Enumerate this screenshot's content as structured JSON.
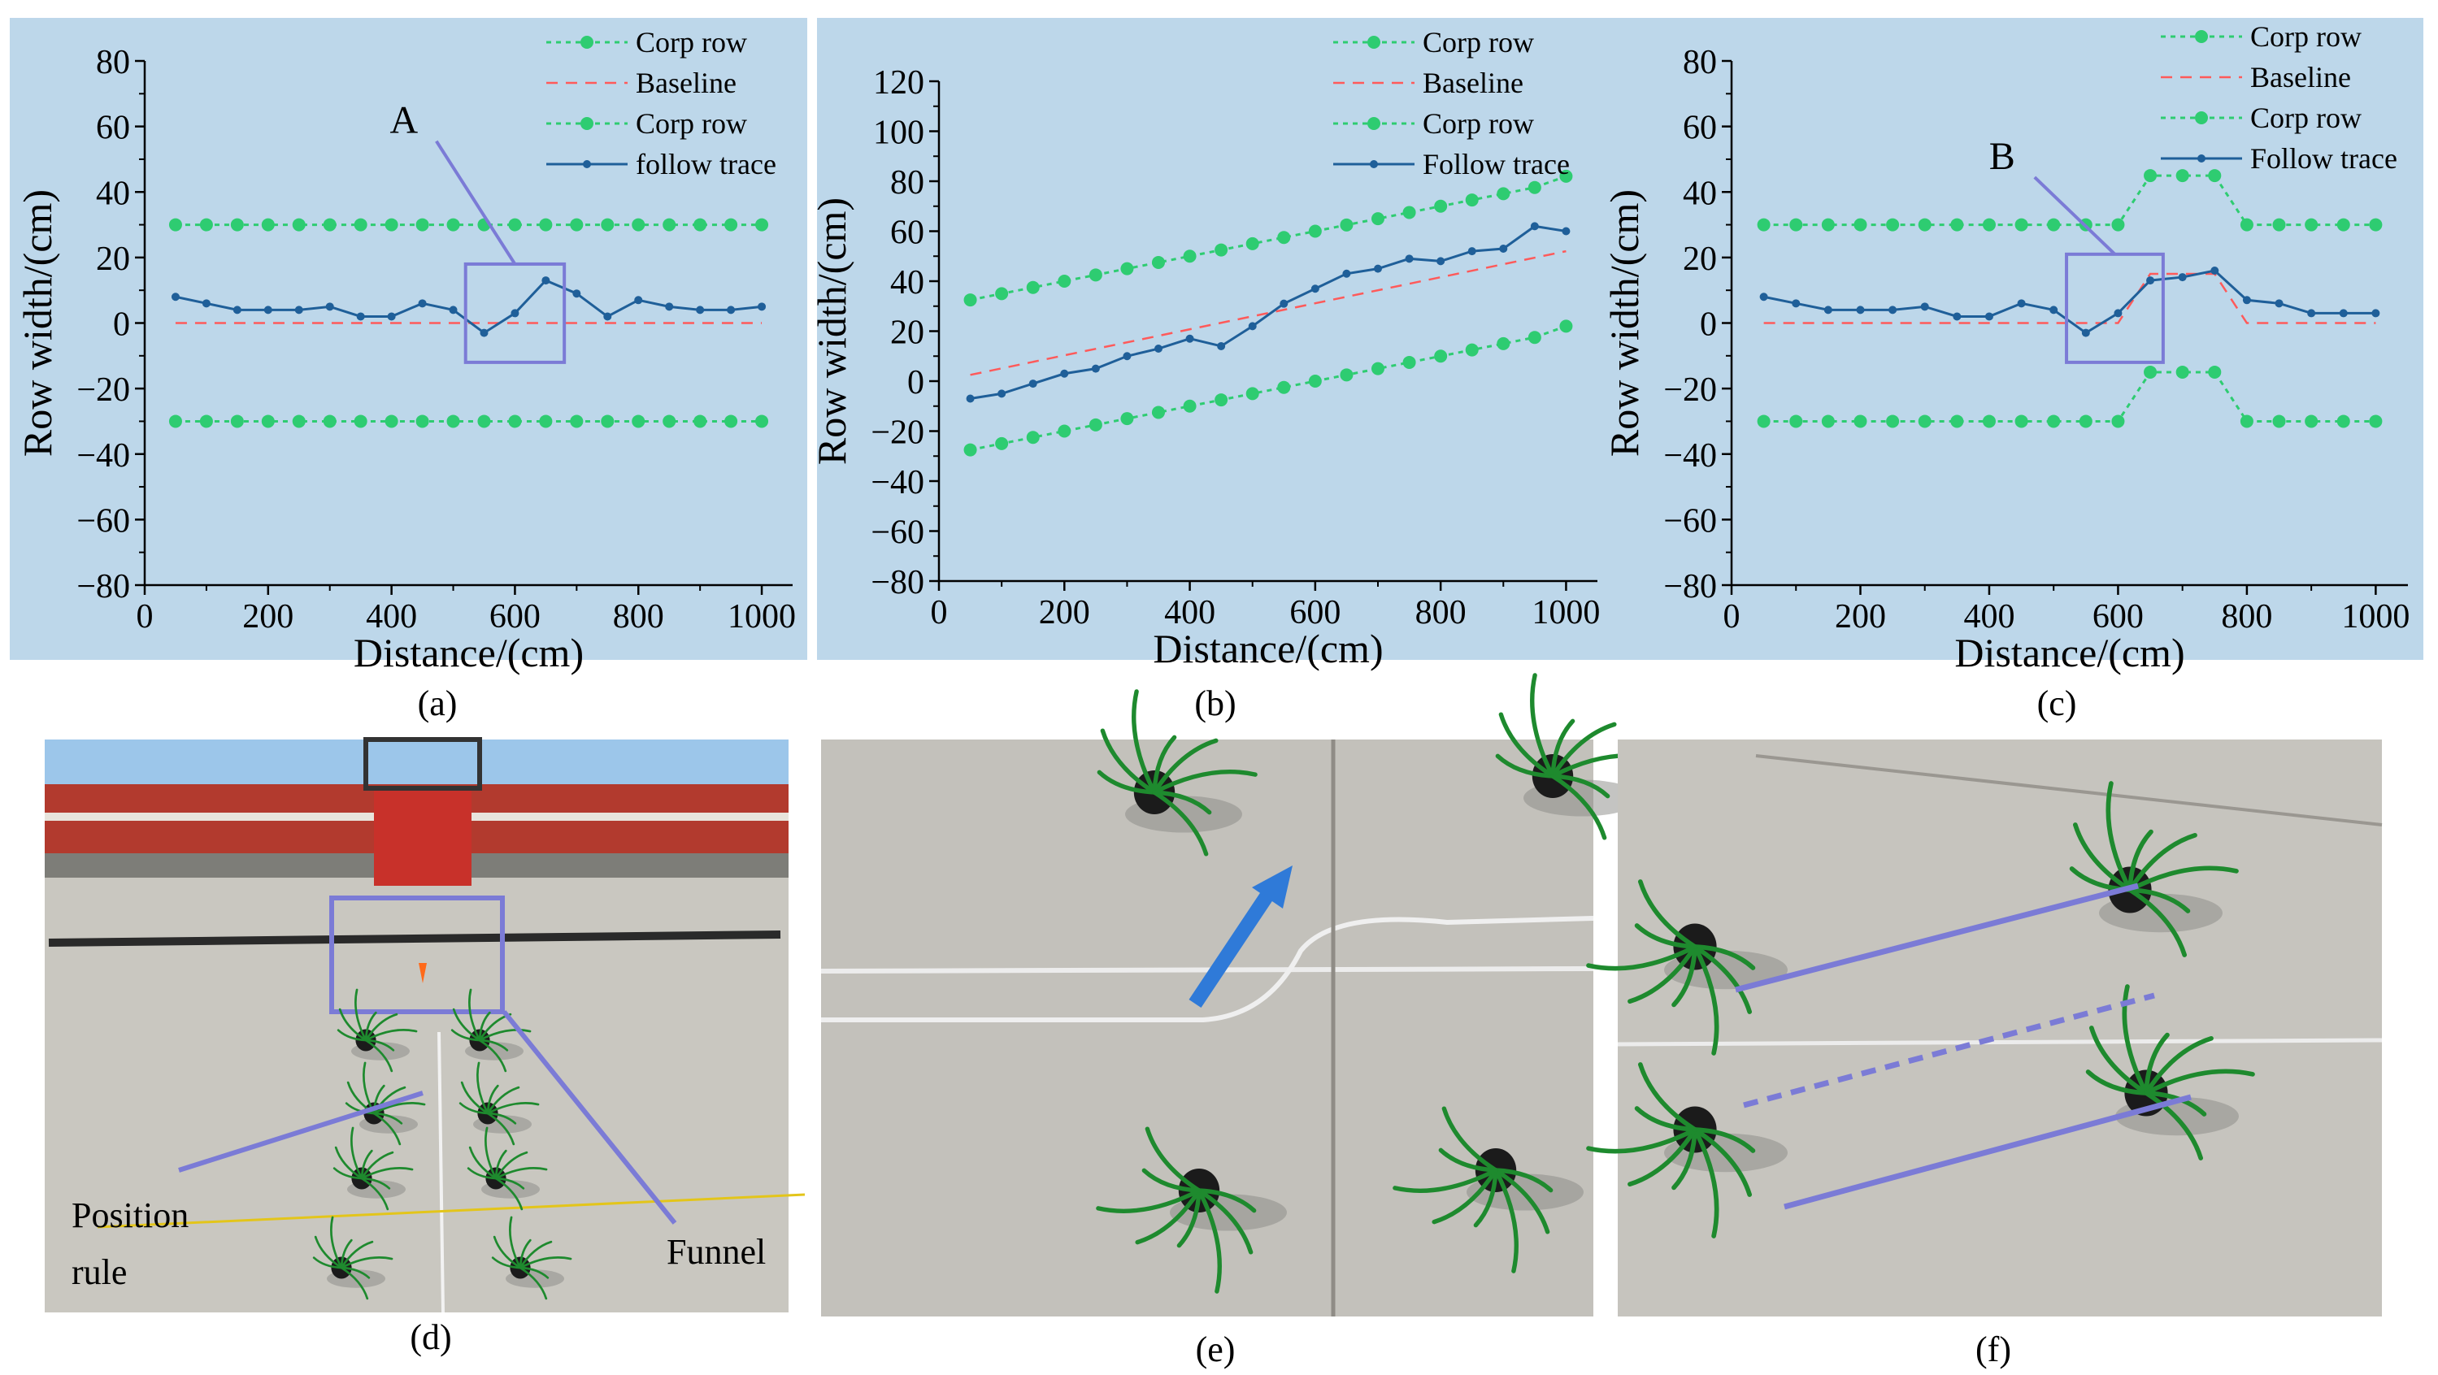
{
  "charts": [
    {
      "id": "a",
      "caption": "(a)",
      "type": "line",
      "xlabel": "Distance/(cm)",
      "ylabel": "Row width/(cm)",
      "xlim": [
        0,
        1050
      ],
      "ylim": [
        -80,
        80
      ],
      "xticks": [
        "0",
        "200",
        "400",
        "600",
        "800",
        "1000"
      ],
      "yticks": [
        "80",
        "60",
        "40",
        "20",
        "0",
        "−20",
        "−40",
        "−60",
        "−80"
      ],
      "legend": [
        "Corp row",
        "Baseline",
        "Corp row",
        "follow trace"
      ],
      "annotation": {
        "label": "A",
        "box_x": [
          520,
          680
        ],
        "box_y": [
          -12,
          18
        ]
      },
      "series": [
        {
          "name": "Corp row",
          "style": "green-dotted",
          "x": [
            50,
            100,
            150,
            200,
            250,
            300,
            350,
            400,
            450,
            500,
            550,
            600,
            650,
            700,
            750,
            800,
            850,
            900,
            950,
            1000
          ],
          "y": [
            30,
            30,
            30,
            30,
            30,
            30,
            30,
            30,
            30,
            30,
            30,
            30,
            30,
            30,
            30,
            30,
            30,
            30,
            30,
            30
          ]
        },
        {
          "name": "Baseline",
          "style": "red-dashed",
          "x": [
            50,
            1000
          ],
          "y": [
            0,
            0
          ]
        },
        {
          "name": "Corp row",
          "style": "green-dotted",
          "x": [
            50,
            100,
            150,
            200,
            250,
            300,
            350,
            400,
            450,
            500,
            550,
            600,
            650,
            700,
            750,
            800,
            850,
            900,
            950,
            1000
          ],
          "y": [
            -30,
            -30,
            -30,
            -30,
            -30,
            -30,
            -30,
            -30,
            -30,
            -30,
            -30,
            -30,
            -30,
            -30,
            -30,
            -30,
            -30,
            -30,
            -30,
            -30
          ]
        },
        {
          "name": "follow trace",
          "style": "blue-solid",
          "x": [
            50,
            100,
            150,
            200,
            250,
            300,
            350,
            400,
            450,
            500,
            550,
            600,
            650,
            700,
            750,
            800,
            850,
            900,
            950,
            1000
          ],
          "y": [
            8,
            6,
            4,
            4,
            4,
            5,
            2,
            2,
            6,
            4,
            -3,
            3,
            13,
            9,
            2,
            7,
            5,
            4,
            4,
            5
          ]
        }
      ]
    },
    {
      "id": "b",
      "caption": "(b)",
      "type": "line",
      "xlabel": "Distance/(cm)",
      "ylabel": "Row width/(cm)",
      "xlim": [
        0,
        1050
      ],
      "ylim": [
        -80,
        120
      ],
      "xticks": [
        "0",
        "200",
        "400",
        "600",
        "800",
        "1000"
      ],
      "yticks": [
        "120",
        "100",
        "80",
        "60",
        "40",
        "20",
        "0",
        "−20",
        "−40",
        "−60",
        "−80"
      ],
      "legend": [
        "Corp row",
        "Baseline",
        "Corp row",
        "Follow trace"
      ],
      "series": [
        {
          "name": "Corp row",
          "style": "green-dotted",
          "x": [
            50,
            100,
            150,
            200,
            250,
            300,
            350,
            400,
            450,
            500,
            550,
            600,
            650,
            700,
            750,
            800,
            850,
            900,
            950,
            1000
          ],
          "y": [
            32.5,
            35,
            37.5,
            40,
            42.5,
            45,
            47.5,
            50,
            52.5,
            55,
            57.5,
            60,
            62.5,
            65,
            67.5,
            70,
            72.5,
            75,
            77.5,
            82
          ]
        },
        {
          "name": "Baseline",
          "style": "red-dashed",
          "x": [
            50,
            1000
          ],
          "y": [
            2.5,
            52
          ]
        },
        {
          "name": "Corp row",
          "style": "green-dotted",
          "x": [
            50,
            100,
            150,
            200,
            250,
            300,
            350,
            400,
            450,
            500,
            550,
            600,
            650,
            700,
            750,
            800,
            850,
            900,
            950,
            1000
          ],
          "y": [
            -27.5,
            -25,
            -22.5,
            -20,
            -17.5,
            -15,
            -12.5,
            -10,
            -7.5,
            -5,
            -2.5,
            0,
            2.5,
            5,
            7.5,
            10,
            12.5,
            15,
            17.5,
            22
          ]
        },
        {
          "name": "Follow trace",
          "style": "blue-solid",
          "x": [
            50,
            100,
            150,
            200,
            250,
            300,
            350,
            400,
            450,
            500,
            550,
            600,
            650,
            700,
            750,
            800,
            850,
            900,
            950,
            1000
          ],
          "y": [
            -7,
            -5,
            -1,
            3,
            5,
            10,
            13,
            17,
            14,
            22,
            31,
            37,
            43,
            45,
            49,
            48,
            52,
            53,
            62,
            60
          ]
        }
      ]
    },
    {
      "id": "c",
      "caption": "(c)",
      "type": "line",
      "xlabel": "Distance/(cm)",
      "ylabel": "Row width/(cm)",
      "xlim": [
        0,
        1050
      ],
      "ylim": [
        -80,
        80
      ],
      "xticks": [
        "0",
        "200",
        "400",
        "600",
        "800",
        "1000"
      ],
      "yticks": [
        "80",
        "60",
        "40",
        "20",
        "0",
        "−20",
        "−40",
        "−60",
        "−80"
      ],
      "legend": [
        "Corp row",
        "Baseline",
        "Corp row",
        "Follow trace"
      ],
      "annotation": {
        "label": "B",
        "box_x": [
          520,
          670
        ],
        "box_y": [
          -12,
          21
        ]
      },
      "series": [
        {
          "name": "Corp row",
          "style": "green-dotted",
          "x": [
            50,
            100,
            150,
            200,
            250,
            300,
            350,
            400,
            450,
            500,
            550,
            600,
            650,
            700,
            750,
            800,
            850,
            900,
            950,
            1000
          ],
          "y": [
            30,
            30,
            30,
            30,
            30,
            30,
            30,
            30,
            30,
            30,
            30,
            30,
            45,
            45,
            45,
            30,
            30,
            30,
            30,
            30
          ]
        },
        {
          "name": "Baseline",
          "style": "red-dashed",
          "x": [
            50,
            600,
            650,
            750,
            800,
            1000
          ],
          "y": [
            0,
            0,
            15,
            15,
            0,
            0
          ]
        },
        {
          "name": "Corp row",
          "style": "green-dotted",
          "x": [
            50,
            100,
            150,
            200,
            250,
            300,
            350,
            400,
            450,
            500,
            550,
            600,
            650,
            700,
            750,
            800,
            850,
            900,
            950,
            1000
          ],
          "y": [
            -30,
            -30,
            -30,
            -30,
            -30,
            -30,
            -30,
            -30,
            -30,
            -30,
            -30,
            -30,
            -15,
            -15,
            -15,
            -30,
            -30,
            -30,
            -30,
            -30
          ]
        },
        {
          "name": "Follow trace",
          "style": "blue-solid",
          "x": [
            50,
            100,
            150,
            200,
            250,
            300,
            350,
            400,
            450,
            500,
            550,
            600,
            650,
            700,
            750,
            800,
            850,
            900,
            950,
            1000
          ],
          "y": [
            8,
            6,
            4,
            4,
            4,
            5,
            2,
            2,
            6,
            4,
            -3,
            3,
            13,
            14,
            16,
            7,
            6,
            3,
            3,
            3
          ]
        }
      ]
    }
  ],
  "photos": [
    {
      "id": "d",
      "caption": "(d)",
      "labels": [
        "Position",
        "rule",
        "Funnel"
      ]
    },
    {
      "id": "e",
      "caption": "(e)"
    },
    {
      "id": "f",
      "caption": "(f)"
    }
  ],
  "colors": {
    "panel_bg": "#bdd7ea",
    "crop_row": "#2ecc71",
    "baseline": "#ff5a5a",
    "trace": "#1f5f99",
    "annotation": "#7b7bd6",
    "concrete": "#b8b6b0",
    "plant": "#1e8a2e"
  }
}
